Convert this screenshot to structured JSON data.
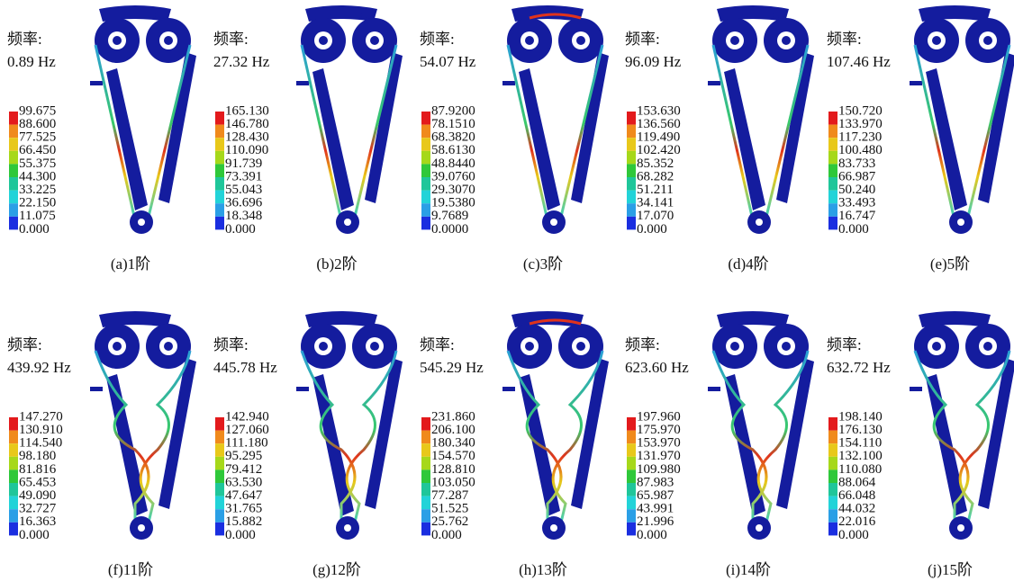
{
  "panels": [
    {
      "label": "频率:",
      "frequency": "0.89 Hz",
      "legend": [
        "99.675",
        "88.600",
        "77.525",
        "66.450",
        "55.375",
        "44.300",
        "33.225",
        "22.150",
        "11.075",
        "0.000"
      ],
      "caption": "(a)1阶"
    },
    {
      "label": "频率:",
      "frequency": "27.32 Hz",
      "legend": [
        "165.130",
        "146.780",
        "128.430",
        "110.090",
        "91.739",
        "73.391",
        "55.043",
        "36.696",
        "18.348",
        "0.000"
      ],
      "caption": "(b)2阶"
    },
    {
      "label": "频率:",
      "frequency": "54.07 Hz",
      "legend": [
        "87.9200",
        "78.1510",
        "68.3820",
        "58.6130",
        "48.8440",
        "39.0760",
        "29.3070",
        "19.5380",
        "9.7689",
        "0.0000"
      ],
      "caption": "(c)3阶"
    },
    {
      "label": "频率:",
      "frequency": "96.09 Hz",
      "legend": [
        "153.630",
        "136.560",
        "119.490",
        "102.420",
        "85.352",
        "68.282",
        "51.211",
        "34.141",
        "17.070",
        "0.000"
      ],
      "caption": "(d)4阶"
    },
    {
      "label": "频率:",
      "frequency": "107.46 Hz",
      "legend": [
        "150.720",
        "133.970",
        "117.230",
        "100.480",
        "83.733",
        "66.987",
        "50.240",
        "33.493",
        "16.747",
        "0.000"
      ],
      "caption": "(e)5阶"
    },
    {
      "label": "频率:",
      "frequency": "439.92 Hz",
      "legend": [
        "147.270",
        "130.910",
        "114.540",
        "98.180",
        "81.816",
        "65.453",
        "49.090",
        "32.727",
        "16.363",
        "0.000"
      ],
      "caption": "(f)11阶"
    },
    {
      "label": "频率:",
      "frequency": "445.78 Hz",
      "legend": [
        "142.940",
        "127.060",
        "111.180",
        "95.295",
        "79.412",
        "63.530",
        "47.647",
        "31.765",
        "15.882",
        "0.000"
      ],
      "caption": "(g)12阶"
    },
    {
      "label": "频率:",
      "frequency": "545.29 Hz",
      "legend": [
        "231.860",
        "206.100",
        "180.340",
        "154.570",
        "128.810",
        "103.050",
        "77.287",
        "51.525",
        "25.762",
        "0.000"
      ],
      "caption": "(h)13阶"
    },
    {
      "label": "频率:",
      "frequency": "623.60 Hz",
      "legend": [
        "197.960",
        "175.970",
        "153.970",
        "131.970",
        "109.980",
        "87.983",
        "65.987",
        "43.991",
        "21.996",
        "0.000"
      ],
      "caption": "(i)14阶"
    },
    {
      "label": "频率:",
      "frequency": "632.72 Hz",
      "legend": [
        "198.140",
        "176.130",
        "154.110",
        "132.100",
        "110.080",
        "88.064",
        "66.048",
        "44.032",
        "22.016",
        "0.000"
      ],
      "caption": "(j)15阶"
    }
  ]
}
